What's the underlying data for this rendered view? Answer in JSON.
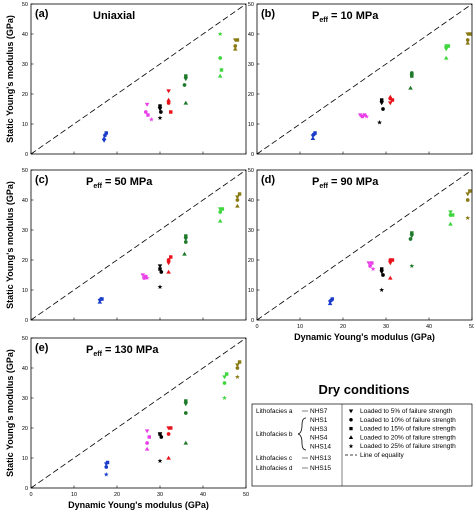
{
  "chart_data": {
    "type": "scatter",
    "xlim": [
      0,
      50
    ],
    "ylim": [
      0,
      50
    ],
    "xticks": [
      0,
      10,
      20,
      30,
      40,
      50
    ],
    "yticks": [
      0,
      10,
      20,
      30,
      40,
      50
    ],
    "xlabel": "Dynamic Young's modulus (GPa)",
    "ylabel": "Static Young's modulus (GPa)",
    "panels": [
      {
        "tag": "(a)",
        "title_main": "Uniaxial",
        "title_sub": "",
        "title_rest": "",
        "show_xticks": false,
        "show_xlabel": false,
        "show_ylabel": true,
        "points": [
          [
            "NHS7",
            17,
            4.5,
            "tri_down"
          ],
          [
            "NHS7",
            17.2,
            6.2,
            "circle"
          ],
          [
            "NHS7",
            17.5,
            7,
            "square"
          ],
          [
            "NHS7",
            17,
            5.2,
            "tri_up"
          ],
          [
            "NHS1",
            27,
            16.5,
            "tri_down"
          ],
          [
            "NHS1",
            26.7,
            14,
            "circle"
          ],
          [
            "NHS1",
            27.2,
            13,
            "square"
          ],
          [
            "NHS1",
            28,
            11.5,
            "star"
          ],
          [
            "NHS2",
            30,
            15,
            "tri_down"
          ],
          [
            "NHS2",
            30.2,
            14,
            "circle"
          ],
          [
            "NHS2",
            30,
            16,
            "square"
          ],
          [
            "NHS2",
            30,
            12,
            "star"
          ],
          [
            "NHS3",
            32,
            21,
            "tri_down"
          ],
          [
            "NHS3",
            32,
            17,
            "circle"
          ],
          [
            "NHS3",
            32.5,
            14,
            "square"
          ],
          [
            "NHS3",
            32,
            18,
            "tri_up"
          ],
          [
            "NHS4",
            44,
            40,
            "star"
          ],
          [
            "NHS4",
            44,
            32,
            "circle"
          ],
          [
            "NHS4",
            44.3,
            28,
            "square"
          ],
          [
            "NHS4",
            44,
            26,
            "tri_up"
          ],
          [
            "NHS14",
            36,
            25,
            "tri_down"
          ],
          [
            "NHS14",
            35.7,
            23,
            "circle"
          ],
          [
            "NHS14",
            36,
            26,
            "square"
          ],
          [
            "NHS14",
            36,
            17,
            "tri_up"
          ],
          [
            "NHS13",
            47.5,
            38,
            "tri_down"
          ],
          [
            "NHS13",
            47.5,
            36,
            "circle"
          ],
          [
            "NHS13",
            48,
            38,
            "square"
          ],
          [
            "NHS13",
            47.5,
            35,
            "tri_up"
          ]
        ]
      },
      {
        "tag": "(b)",
        "title_main": "P",
        "title_sub": "eff",
        "title_rest": " = 10 MPa",
        "show_xticks": false,
        "show_xlabel": false,
        "show_ylabel": false,
        "points": [
          [
            "NHS7",
            13,
            6,
            "tri_down"
          ],
          [
            "NHS7",
            13.2,
            6.5,
            "circle"
          ],
          [
            "NHS7",
            13.5,
            7,
            "square"
          ],
          [
            "NHS7",
            13,
            5.2,
            "tri_up"
          ],
          [
            "NHS1",
            24,
            13,
            "tri_down"
          ],
          [
            "NHS1",
            24.5,
            12.5,
            "circle"
          ],
          [
            "NHS1",
            25,
            13,
            "square"
          ],
          [
            "NHS1",
            25.5,
            12.5,
            "star"
          ],
          [
            "NHS2",
            29,
            17,
            "tri_down"
          ],
          [
            "NHS2",
            29.3,
            15,
            "circle"
          ],
          [
            "NHS2",
            29,
            18,
            "square"
          ],
          [
            "NHS2",
            28.5,
            10.5,
            "star"
          ],
          [
            "NHS3",
            31,
            17,
            "tri_down"
          ],
          [
            "NHS3",
            31,
            18.5,
            "circle"
          ],
          [
            "NHS3",
            31.5,
            18,
            "square"
          ],
          [
            "NHS3",
            31,
            19,
            "tri_up"
          ],
          [
            "NHS4",
            44,
            35,
            "tri_down"
          ],
          [
            "NHS4",
            44,
            36,
            "circle"
          ],
          [
            "NHS4",
            44.5,
            36,
            "square"
          ],
          [
            "NHS4",
            44,
            32,
            "tri_up"
          ],
          [
            "NHS14",
            36,
            26,
            "tri_down"
          ],
          [
            "NHS14",
            36,
            27,
            "circle"
          ],
          [
            "NHS14",
            36,
            26,
            "square"
          ],
          [
            "NHS14",
            35.7,
            22,
            "tri_up"
          ],
          [
            "NHS13",
            49,
            40,
            "tri_down"
          ],
          [
            "NHS13",
            49,
            38,
            "circle"
          ],
          [
            "NHS13",
            49.5,
            40,
            "square"
          ],
          [
            "NHS13",
            49,
            37,
            "tri_up"
          ]
        ]
      },
      {
        "tag": "(c)",
        "title_main": "P",
        "title_sub": "eff",
        "title_rest": " = 50 MPa",
        "show_xticks": false,
        "show_xlabel": false,
        "show_ylabel": true,
        "points": [
          [
            "NHS7",
            16,
            6.5,
            "tri_down"
          ],
          [
            "NHS7",
            16.3,
            7,
            "circle"
          ],
          [
            "NHS7",
            16.5,
            7,
            "square"
          ],
          [
            "NHS7",
            16,
            6,
            "tri_up"
          ],
          [
            "NHS1",
            26,
            15,
            "tri_down"
          ],
          [
            "NHS1",
            26.3,
            14,
            "circle"
          ],
          [
            "NHS1",
            26.7,
            14.5,
            "square"
          ],
          [
            "NHS1",
            27,
            14,
            "star"
          ],
          [
            "NHS2",
            30,
            18,
            "tri_down"
          ],
          [
            "NHS2",
            30.3,
            16,
            "circle"
          ],
          [
            "NHS2",
            30,
            17,
            "square"
          ],
          [
            "NHS2",
            30,
            11,
            "star"
          ],
          [
            "NHS3",
            32,
            19,
            "tri_down"
          ],
          [
            "NHS3",
            32,
            20,
            "circle"
          ],
          [
            "NHS3",
            32.5,
            21,
            "square"
          ],
          [
            "NHS3",
            32,
            16,
            "tri_up"
          ],
          [
            "NHS4",
            44,
            37,
            "tri_down"
          ],
          [
            "NHS4",
            44,
            36,
            "circle"
          ],
          [
            "NHS4",
            44.5,
            37,
            "square"
          ],
          [
            "NHS4",
            44,
            33,
            "tri_up"
          ],
          [
            "NHS14",
            36,
            27,
            "tri_down"
          ],
          [
            "NHS14",
            36,
            26,
            "circle"
          ],
          [
            "NHS14",
            36,
            28,
            "square"
          ],
          [
            "NHS14",
            35.7,
            22,
            "tri_up"
          ],
          [
            "NHS13",
            48,
            41,
            "tri_down"
          ],
          [
            "NHS13",
            48,
            40,
            "circle"
          ],
          [
            "NHS13",
            48.5,
            42,
            "square"
          ],
          [
            "NHS13",
            48,
            38,
            "tri_up"
          ]
        ]
      },
      {
        "tag": "(d)",
        "title_main": "P",
        "title_sub": "eff",
        "title_rest": " = 90 MPa",
        "show_xticks": true,
        "show_xlabel": true,
        "show_ylabel": false,
        "points": [
          [
            "NHS7",
            17,
            6,
            "tri_down"
          ],
          [
            "NHS7",
            17.2,
            6.5,
            "circle"
          ],
          [
            "NHS7",
            17.5,
            7,
            "square"
          ],
          [
            "NHS7",
            17,
            5.5,
            "tri_up"
          ],
          [
            "NHS1",
            26,
            19,
            "tri_down"
          ],
          [
            "NHS1",
            26.3,
            18,
            "circle"
          ],
          [
            "NHS1",
            26.7,
            19,
            "square"
          ],
          [
            "NHS1",
            27,
            17,
            "star"
          ],
          [
            "NHS2",
            29,
            16,
            "tri_down"
          ],
          [
            "NHS2",
            29.3,
            15,
            "circle"
          ],
          [
            "NHS2",
            29,
            17,
            "square"
          ],
          [
            "NHS2",
            29,
            10,
            "star"
          ],
          [
            "NHS3",
            31,
            19,
            "tri_down"
          ],
          [
            "NHS3",
            31,
            20,
            "circle"
          ],
          [
            "NHS3",
            31.5,
            20,
            "square"
          ],
          [
            "NHS3",
            31,
            14,
            "tri_up"
          ],
          [
            "NHS4",
            45,
            36,
            "tri_down"
          ],
          [
            "NHS4",
            45,
            35,
            "circle"
          ],
          [
            "NHS4",
            45.5,
            35,
            "square"
          ],
          [
            "NHS4",
            45,
            32,
            "tri_up"
          ],
          [
            "NHS14",
            36,
            28,
            "tri_down"
          ],
          [
            "NHS14",
            35.7,
            27,
            "circle"
          ],
          [
            "NHS14",
            36,
            29,
            "square"
          ],
          [
            "NHS14",
            36,
            18,
            "star"
          ],
          [
            "NHS13",
            49,
            42,
            "tri_down"
          ],
          [
            "NHS13",
            49,
            40,
            "circle"
          ],
          [
            "NHS13",
            49.5,
            43,
            "square"
          ],
          [
            "NHS13",
            49,
            34,
            "star"
          ]
        ]
      },
      {
        "tag": "(e)",
        "title_main": "P",
        "title_sub": "eff",
        "title_rest": " = 130 MPa",
        "show_xticks": true,
        "show_xlabel": true,
        "show_ylabel": true,
        "points": [
          [
            "NHS7",
            17.5,
            8,
            "tri_down"
          ],
          [
            "NHS7",
            17.5,
            7,
            "circle"
          ],
          [
            "NHS7",
            17.8,
            8.5,
            "square"
          ],
          [
            "NHS7",
            17.5,
            4.5,
            "star"
          ],
          [
            "NHS1",
            27,
            19,
            "tri_down"
          ],
          [
            "NHS1",
            27,
            15,
            "circle"
          ],
          [
            "NHS1",
            27.5,
            17,
            "square"
          ],
          [
            "NHS1",
            27,
            13,
            "tri_up"
          ],
          [
            "NHS2",
            30,
            18,
            "tri_down"
          ],
          [
            "NHS2",
            30.3,
            17,
            "circle"
          ],
          [
            "NHS2",
            30,
            18,
            "square"
          ],
          [
            "NHS2",
            30,
            9,
            "star"
          ],
          [
            "NHS3",
            32,
            20,
            "tri_down"
          ],
          [
            "NHS3",
            32,
            18,
            "circle"
          ],
          [
            "NHS3",
            32.5,
            20,
            "square"
          ],
          [
            "NHS3",
            32,
            10,
            "tri_up"
          ],
          [
            "NHS4",
            45,
            37,
            "tri_down"
          ],
          [
            "NHS4",
            45,
            35,
            "circle"
          ],
          [
            "NHS4",
            45.5,
            38,
            "square"
          ],
          [
            "NHS4",
            45,
            30,
            "star"
          ],
          [
            "NHS14",
            36,
            28,
            "tri_down"
          ],
          [
            "NHS14",
            36,
            25,
            "circle"
          ],
          [
            "NHS14",
            36,
            29,
            "square"
          ],
          [
            "NHS14",
            36,
            15,
            "tri_up"
          ],
          [
            "NHS13",
            48,
            41,
            "tri_down"
          ],
          [
            "NHS13",
            48,
            40,
            "circle"
          ],
          [
            "NHS13",
            48.5,
            42,
            "square"
          ],
          [
            "NHS13",
            48,
            37,
            "star"
          ]
        ]
      }
    ],
    "samples": [
      {
        "name": "NHS7",
        "color": "#1a3cc8"
      },
      {
        "name": "NHS1",
        "color": "#000000"
      },
      {
        "name": "NHS3",
        "color": "#e8121a"
      },
      {
        "name": "NHS4",
        "color": "#3fd63f"
      },
      {
        "name": "NHS14",
        "color": "#1e7a2a"
      },
      {
        "name": "NHS13",
        "color": "#8a7a14"
      },
      {
        "name": "NHS15",
        "color": "#e83fe8"
      }
    ],
    "point_color_map": {
      "NHS7": "#1a3cc8",
      "NHS1": "#e83fe8",
      "NHS2": "#000000",
      "NHS3": "#e8121a",
      "NHS4": "#3fd63f",
      "NHS14": "#1e7a2a",
      "NHS13": "#8a7a14"
    }
  },
  "legend": {
    "heading": "Dry conditions",
    "lithofacies": [
      {
        "label": "Lithofacies a",
        "items": [
          "NHS7"
        ]
      },
      {
        "label": "Lithofacies b",
        "items": [
          "NHS1",
          "NHS3",
          "NHS4",
          "NHS14"
        ]
      },
      {
        "label": "Lithofacies c",
        "items": [
          "NHS13"
        ]
      },
      {
        "label": "Lithofacies d",
        "items": [
          "NHS15"
        ]
      }
    ],
    "markers": [
      {
        "shape": "tri_down",
        "label": "Loaded to 5% of failure strength"
      },
      {
        "shape": "circle",
        "label": "Loaded to 10% of failure strength"
      },
      {
        "shape": "square",
        "label": "Loaded to 15% of failure strength"
      },
      {
        "shape": "tri_up",
        "label": "Loaded to 20% of failure strength"
      },
      {
        "shape": "star",
        "label": "Loaded to 25% of failure strength"
      }
    ],
    "equality_label": "Line of equality"
  }
}
